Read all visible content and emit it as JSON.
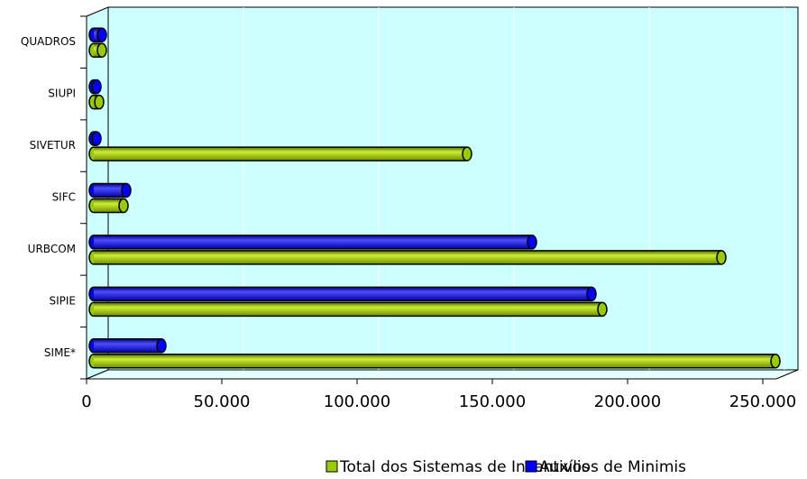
{
  "chart_data": {
    "type": "bar",
    "orientation": "horizontal",
    "categories": [
      "SIME*",
      "SIPIE",
      "URBCOM",
      "SIFC",
      "SIVETUR",
      "SIUPI",
      "QUADROS"
    ],
    "series": [
      {
        "name": "Total dos Sistemas de Incentivos",
        "color": "#99cc00",
        "values": [
          252000,
          188000,
          232000,
          11000,
          138000,
          2000,
          3000
        ]
      },
      {
        "name": "Auxílios de Minimis",
        "color": "#0000ff",
        "values": [
          25000,
          184000,
          162000,
          12000,
          1000,
          1000,
          3000
        ]
      }
    ],
    "xlim": [
      0,
      250000
    ],
    "xticks": [
      0,
      {
        "value": 50000,
        "label": "50.000"
      },
      {
        "value": 100000,
        "label": "100.000"
      },
      {
        "value": 150000,
        "label": "150.000"
      },
      {
        "value": 200000,
        "label": "200.000"
      },
      {
        "value": 250000,
        "label": "250.000"
      }
    ],
    "grid": true,
    "legend": "bottom"
  }
}
